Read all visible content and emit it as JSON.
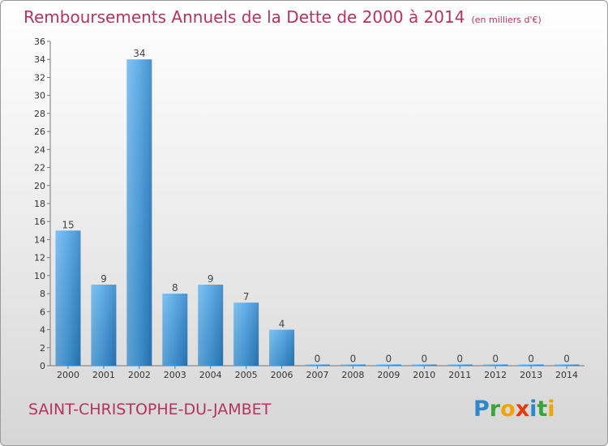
{
  "chart_data": {
    "type": "bar",
    "title": "Remboursements Annuels de la Dette de 2000 à 2014",
    "subtitle": "(en milliers d'€)",
    "categories": [
      "2000",
      "2001",
      "2002",
      "2003",
      "2004",
      "2005",
      "2006",
      "2007",
      "2008",
      "2009",
      "2010",
      "2011",
      "2012",
      "2013",
      "2014"
    ],
    "values": [
      15,
      9,
      34,
      8,
      9,
      7,
      4,
      0,
      0,
      0,
      0,
      0,
      0,
      0,
      0
    ],
    "ylim": [
      0,
      36
    ],
    "yticks": [
      0,
      2,
      4,
      6,
      8,
      10,
      12,
      14,
      16,
      18,
      20,
      22,
      24,
      26,
      28,
      30,
      32,
      34,
      36
    ],
    "xlabel": "",
    "ylabel": "",
    "grid": false,
    "bar_color": "#3d95d8"
  },
  "footer": {
    "commune": "SAINT-CHRISTOPHE-DU-JAMBET",
    "logo_letters": [
      {
        "ch": "P",
        "color": "#2d88c9"
      },
      {
        "ch": "r",
        "color": "#3aa33a"
      },
      {
        "ch": "o",
        "color": "#f0a400"
      },
      {
        "ch": "x",
        "color": "#e8380d"
      },
      {
        "ch": "i",
        "color": "#2d88c9"
      },
      {
        "ch": "t",
        "color": "#3aa33a"
      },
      {
        "ch": "i",
        "color": "#f0a400"
      }
    ]
  }
}
